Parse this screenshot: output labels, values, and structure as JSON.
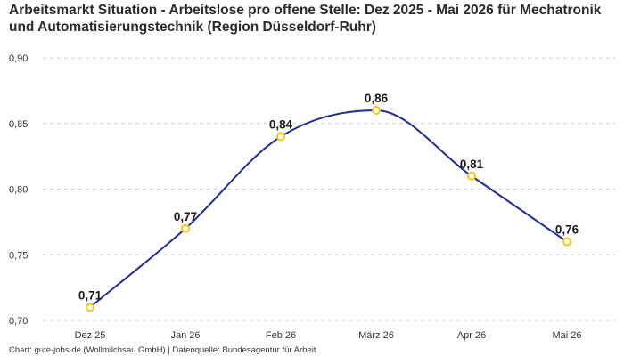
{
  "chart_data": {
    "type": "line",
    "title": "Arbeitsmarkt Situation - Arbeitslose pro offene Stelle: Dez 2025 - Mai 2026 für Mechatronik und Automatisierungstechnik (Region Düsseldorf-Ruhr)",
    "categories": [
      "Dez 25",
      "Jan 26",
      "Feb 26",
      "März 26",
      "Apr 26",
      "Mai 26"
    ],
    "series": [
      {
        "values": [
          0.71,
          0.77,
          0.84,
          0.86,
          0.81,
          0.76
        ]
      }
    ],
    "data_labels": [
      "0,71",
      "0,77",
      "0,84",
      "0,86",
      "0,81",
      "0,76"
    ],
    "ylim": [
      0.7,
      0.9
    ],
    "yticks": [
      0.7,
      0.75,
      0.8,
      0.85,
      0.9
    ],
    "ytick_labels": [
      "0,70",
      "0,75",
      "0,80",
      "0,85",
      "0,90"
    ],
    "grid": true,
    "colors": {
      "line": "#1f2f8a",
      "marker": "#f5c518",
      "grid": "#cccccc"
    }
  },
  "footer": {
    "source": "Chart: gute-jobs.de (Wollmilchsau GmbH) | Datenquelle: Bundesagentur für Arbeit"
  }
}
